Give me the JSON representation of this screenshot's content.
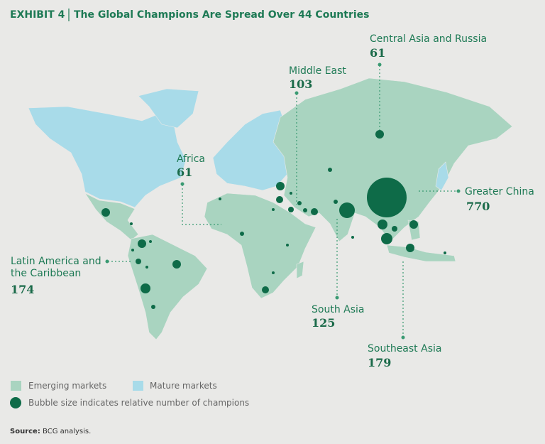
{
  "header": {
    "exhibit": "EXHIBIT 4",
    "title": "The Global Champions Are Spread Over 44 Countries"
  },
  "regions": [
    {
      "name": "Central Asia and Russia",
      "count": "61"
    },
    {
      "name": "Middle East",
      "count": "103"
    },
    {
      "name": "Africa",
      "count": "61"
    },
    {
      "name": "Greater China",
      "count": "770"
    },
    {
      "name": "Latin America and the Caribbean",
      "count": "174"
    },
    {
      "name": "South Asia",
      "count": "125"
    },
    {
      "name": "Southeast Asia",
      "count": "179"
    }
  ],
  "legend": {
    "emerging": "Emerging markets",
    "mature": "Mature markets",
    "bubble": "Bubble size indicates relative number of champions"
  },
  "source": {
    "label": "Source:",
    "text": "BCG analysis."
  }
}
